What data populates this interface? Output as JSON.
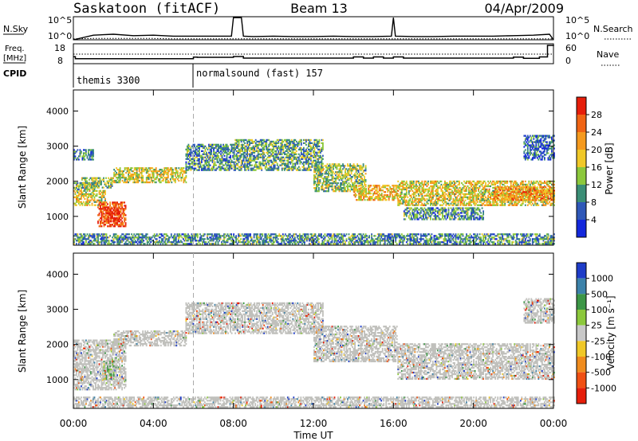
{
  "header": {
    "station": "Saskatoon (fitACF)",
    "beam": "Beam 13",
    "date": "04/Apr/2009"
  },
  "chart_data": [
    {
      "type": "line",
      "name": "sky-search-noise",
      "left_label": "N.Sky",
      "right_label": "N.Search",
      "left_ticks": [
        "10^5",
        "10^0"
      ],
      "right_ticks": [
        "10^5",
        "10^0"
      ],
      "ylim_log10": [
        0,
        5
      ],
      "x": [
        0,
        1,
        2,
        3,
        4,
        5,
        6,
        7,
        7.9,
        8.0,
        8.4,
        8.5,
        9,
        10,
        11,
        12,
        13,
        14,
        15,
        15.9,
        16.0,
        16.1,
        17,
        18,
        19,
        20,
        21,
        22,
        23,
        23.8,
        24
      ],
      "series": [
        {
          "style": "solid",
          "log10_values": [
            0,
            1.0,
            1.2,
            0.9,
            1.0,
            0.8,
            0.8,
            0.8,
            0.8,
            4.8,
            4.8,
            0.8,
            0.7,
            0.8,
            0.7,
            0.7,
            0.8,
            0.7,
            0.7,
            0.8,
            4.8,
            0.8,
            0.7,
            0.7,
            0.8,
            0.8,
            0.8,
            0.9,
            1.0,
            1.2,
            0
          ]
        },
        {
          "style": "dotted",
          "log10_values": [
            0.2,
            0.3,
            0.3,
            0.3,
            0.3,
            0.2,
            0.2,
            0.2,
            0.2,
            0.2,
            0.2,
            0.2,
            0.2,
            0.2,
            0.2,
            0.2,
            0.2,
            0.2,
            0.2,
            0.2,
            0.2,
            0.2,
            0.2,
            0.2,
            0.2,
            0.2,
            0.2,
            0.2,
            0.2,
            0.2,
            0.2
          ]
        }
      ]
    },
    {
      "type": "line",
      "name": "frequency-nave",
      "left_label_line1": "Freq.",
      "left_label_line2": "[MHz]",
      "right_label": "Nave",
      "left_ticks": [
        "18",
        "8"
      ],
      "right_ticks": [
        "60",
        "0"
      ],
      "ylim_freq_mhz": [
        8,
        18
      ],
      "series": [
        {
          "name": "freq",
          "style": "solid",
          "x": [
            0,
            0.1,
            6,
            6.2,
            8,
            8.5,
            14,
            14.5,
            15,
            15.5,
            16,
            16.5,
            22,
            22.5,
            23.3,
            23.7,
            24
          ],
          "values": [
            11.5,
            10.5,
            11.3,
            11.2,
            11.6,
            10.8,
            11.4,
            10.8,
            11.4,
            10.8,
            11.4,
            10.8,
            11.3,
            10.7,
            11.4,
            17.2,
            17.5
          ]
        },
        {
          "name": "nave",
          "style": "dotted",
          "x": [
            0,
            24
          ],
          "values": [
            12.8,
            12.8
          ]
        }
      ]
    },
    {
      "type": "table",
      "name": "cpid",
      "label": "CPID",
      "segments": [
        {
          "start_hour": 0,
          "label": "themis 3300"
        },
        {
          "start_hour": 6,
          "label": "normalsound (fast) 157"
        }
      ]
    },
    {
      "type": "heatmap",
      "name": "power",
      "ylabel": "Slant Range [km]",
      "yticks": [
        1000,
        2000,
        3000,
        4000
      ],
      "ylim": [
        180,
        4600
      ],
      "xlim": [
        0,
        24
      ],
      "colorbar_label": "Power [dB]",
      "colorbar_ticks": [
        4,
        8,
        12,
        16,
        20,
        24,
        28
      ],
      "colorbar_colors": [
        "#1428dc",
        "#2f58b8",
        "#3b8e76",
        "#8cc83c",
        "#f0c828",
        "#f59a1e",
        "#f06414",
        "#e61e0a"
      ],
      "regions": [
        {
          "t0": 0.0,
          "t1": 1.6,
          "r0": 1300,
          "r1": 1750,
          "level": 0.55
        },
        {
          "t0": 0.0,
          "t1": 1.2,
          "r0": 1750,
          "r1": 1950,
          "level": 0.35
        },
        {
          "t0": 1.2,
          "t1": 2.6,
          "r0": 700,
          "r1": 1400,
          "level": 0.85
        },
        {
          "t0": 1.6,
          "t1": 2.3,
          "r0": 850,
          "r1": 1250,
          "level": 0.98
        },
        {
          "t0": 0.4,
          "t1": 2.0,
          "r0": 1800,
          "r1": 2100,
          "level": 0.45
        },
        {
          "t0": 2.0,
          "t1": 5.6,
          "r0": 1950,
          "r1": 2400,
          "level": 0.5
        },
        {
          "t0": 0.0,
          "t1": 1.0,
          "r0": 2600,
          "r1": 2900,
          "level": 0.25
        },
        {
          "t0": 5.6,
          "t1": 8.0,
          "r0": 2300,
          "r1": 3050,
          "level": 0.3
        },
        {
          "t0": 8.0,
          "t1": 12.5,
          "r0": 2300,
          "r1": 3200,
          "level": 0.35
        },
        {
          "t0": 12.0,
          "t1": 14.6,
          "r0": 1700,
          "r1": 2500,
          "level": 0.45
        },
        {
          "t0": 14.0,
          "t1": 16.2,
          "r0": 1450,
          "r1": 1900,
          "level": 0.6
        },
        {
          "t0": 16.2,
          "t1": 24.0,
          "r0": 1300,
          "r1": 2000,
          "level": 0.55
        },
        {
          "t0": 21.0,
          "t1": 24.0,
          "r0": 1450,
          "r1": 1850,
          "level": 0.7
        },
        {
          "t0": 16.5,
          "t1": 20.5,
          "r0": 900,
          "r1": 1250,
          "level": 0.3
        },
        {
          "t0": 22.5,
          "t1": 24.0,
          "r0": 2600,
          "r1": 3300,
          "level": 0.2
        },
        {
          "t0": 0.0,
          "t1": 24.0,
          "r0": 200,
          "r1": 480,
          "level": 0.3
        }
      ]
    },
    {
      "type": "heatmap",
      "name": "velocity",
      "ylabel": "Slant Range [km]",
      "xlabel": "Time UT",
      "xticks": [
        "00:00",
        "04:00",
        "08:00",
        "12:00",
        "16:00",
        "20:00",
        "00:00"
      ],
      "yticks": [
        1000,
        2000,
        3000,
        4000
      ],
      "ylim": [
        180,
        4600
      ],
      "xlim": [
        0,
        24
      ],
      "colorbar_label": "Velocity [m s⁻¹]",
      "colorbar_ticks": [
        "1000",
        "500",
        "100",
        "25",
        "-25",
        "-100",
        "-500",
        "-1000"
      ],
      "colorbar_colors": [
        "#1e3cc8",
        "#3c82aa",
        "#3c9646",
        "#8cc83c",
        "#c8c8c8",
        "#f0c828",
        "#f08c1e",
        "#f05014",
        "#e61e0a"
      ],
      "ground_scatter_color": "#c0c0bc",
      "regions": [
        {
          "t0": 0.0,
          "t1": 2.6,
          "r0": 700,
          "r1": 2100,
          "level": 0.5
        },
        {
          "t0": 1.5,
          "t1": 2.0,
          "r0": 1000,
          "r1": 1500,
          "level": 0.8
        },
        {
          "t0": 2.0,
          "t1": 5.6,
          "r0": 1950,
          "r1": 2400,
          "level": 0.5
        },
        {
          "t0": 5.6,
          "t1": 12.5,
          "r0": 2300,
          "r1": 3200,
          "level": 0.5
        },
        {
          "t0": 12.0,
          "t1": 16.2,
          "r0": 1500,
          "r1": 2500,
          "level": 0.5
        },
        {
          "t0": 16.2,
          "t1": 24.0,
          "r0": 1000,
          "r1": 2000,
          "level": 0.5
        },
        {
          "t0": 22.5,
          "t1": 24.0,
          "r0": 2600,
          "r1": 3300,
          "level": 0.4
        },
        {
          "t0": 0.0,
          "t1": 24.0,
          "r0": 200,
          "r1": 480,
          "level": 0.5
        }
      ]
    }
  ]
}
